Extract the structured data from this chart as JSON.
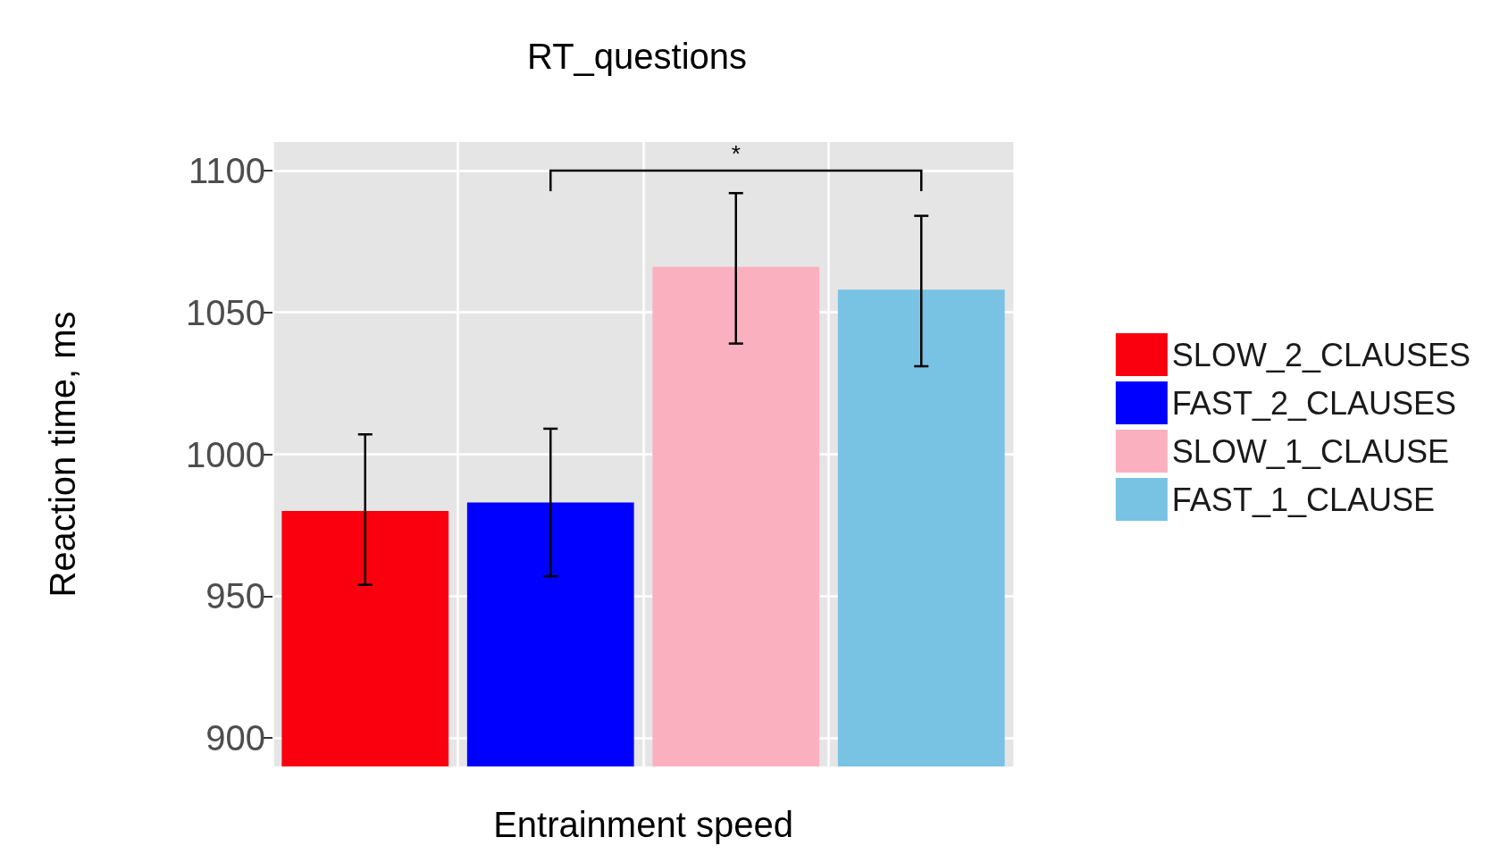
{
  "chart_data": {
    "type": "bar",
    "title": "RT_questions",
    "xlabel": "Entrainment speed",
    "ylabel": "Reaction time, ms",
    "categories": [
      null,
      null,
      null,
      null
    ],
    "series": [
      {
        "name": "SLOW_2_CLAUSES",
        "color": "#fa000f",
        "values": [
          980,
          null,
          null,
          null
        ],
        "errors": [
          [
            954,
            1007
          ],
          null,
          null,
          null
        ]
      },
      {
        "name": "FAST_2_CLAUSES",
        "color": "#0000ff",
        "values": [
          null,
          983,
          null,
          null
        ],
        "errors": [
          null,
          [
            957,
            1009
          ],
          null,
          null
        ]
      },
      {
        "name": "SLOW_1_CLAUSE",
        "color": "#fbb0c0",
        "values": [
          null,
          null,
          1066,
          null
        ],
        "errors": [
          null,
          null,
          [
            1039,
            1092
          ],
          null
        ]
      },
      {
        "name": "FAST_1_CLAUSE",
        "color": "#78c2e4",
        "values": [
          null,
          null,
          null,
          1058
        ],
        "errors": [
          null,
          null,
          null,
          [
            1031,
            1084
          ]
        ]
      }
    ],
    "ylim": [
      890,
      1110
    ],
    "yticks": [
      900,
      950,
      1000,
      1050,
      1100
    ],
    "grid": true,
    "legend": "right",
    "annotations": [
      "*"
    ]
  }
}
